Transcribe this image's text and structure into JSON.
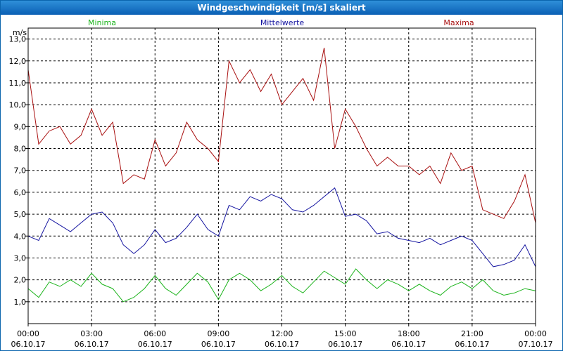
{
  "window": {
    "title": "Windgeschwindigkeit [m/s] skaliert"
  },
  "colors": {
    "min": "#1bb31b",
    "mean": "#1414a0",
    "max": "#a80f0f",
    "grid": "#000000",
    "title_bg": "#1670c6"
  },
  "chart_data": {
    "type": "line",
    "title": "Windgeschwindigkeit [m/s] skaliert",
    "ylabel": "m/s",
    "xlabel": "",
    "ylim": [
      0.0,
      13.5
    ],
    "xlim": [
      0,
      24
    ],
    "y_ticks": [
      1.0,
      2.0,
      3.0,
      4.0,
      5.0,
      6.0,
      7.0,
      8.0,
      9.0,
      10.0,
      11.0,
      12.0,
      13.0
    ],
    "y_tick_labels": [
      "1,0",
      "2,0",
      "3,0",
      "4,0",
      "5,0",
      "6,0",
      "7,0",
      "8,0",
      "9,0",
      "10,0",
      "11,0",
      "12,0",
      "13,0"
    ],
    "x_ticks": [
      0,
      3,
      6,
      9,
      12,
      15,
      18,
      21,
      24
    ],
    "x_tick_times": [
      "00:00",
      "03:00",
      "06:00",
      "09:00",
      "12:00",
      "15:00",
      "18:00",
      "21:00",
      "00:00"
    ],
    "x_tick_dates": [
      "06.10.17",
      "06.10.17",
      "06.10.17",
      "06.10.17",
      "06.10.17",
      "06.10.17",
      "06.10.17",
      "06.10.17",
      "07.10.17"
    ],
    "grid": true,
    "legend": [
      "Minima",
      "Mittelwerte",
      "Maxima"
    ],
    "series": [
      {
        "name": "Minima",
        "color": "#1bb31b",
        "x": [
          0,
          0.5,
          1,
          1.5,
          2,
          2.5,
          3,
          3.5,
          4,
          4.5,
          5,
          5.5,
          6,
          6.5,
          7,
          7.5,
          8,
          8.5,
          9,
          9.5,
          10,
          10.5,
          11,
          11.5,
          12,
          12.5,
          13,
          13.5,
          14,
          14.5,
          15,
          15.5,
          16,
          16.5,
          17,
          17.5,
          18,
          18.5,
          19,
          19.5,
          20,
          20.5,
          21,
          21.5,
          22,
          22.5,
          23,
          23.5,
          24
        ],
        "values": [
          1.6,
          1.2,
          1.9,
          1.7,
          2.0,
          1.7,
          2.3,
          1.8,
          1.6,
          1.0,
          1.2,
          1.6,
          2.2,
          1.6,
          1.3,
          1.8,
          2.3,
          1.9,
          1.1,
          2.0,
          2.3,
          2.0,
          1.5,
          1.8,
          2.2,
          1.7,
          1.4,
          1.9,
          2.4,
          2.1,
          1.8,
          2.5,
          2.0,
          1.6,
          2.0,
          1.8,
          1.5,
          1.8,
          1.5,
          1.3,
          1.7,
          1.9,
          1.6,
          2.0,
          1.5,
          1.3,
          1.4,
          1.6,
          1.5
        ]
      },
      {
        "name": "Mittelwerte",
        "color": "#1414a0",
        "x": [
          0,
          0.5,
          1,
          1.5,
          2,
          2.5,
          3,
          3.5,
          4,
          4.5,
          5,
          5.5,
          6,
          6.5,
          7,
          7.5,
          8,
          8.5,
          9,
          9.5,
          10,
          10.5,
          11,
          11.5,
          12,
          12.5,
          13,
          13.5,
          14,
          14.5,
          15,
          15.5,
          16,
          16.5,
          17,
          17.5,
          18,
          18.5,
          19,
          19.5,
          20,
          20.5,
          21,
          21.5,
          22,
          22.5,
          23,
          23.5,
          24
        ],
        "values": [
          4.0,
          3.8,
          4.8,
          4.5,
          4.2,
          4.6,
          5.0,
          5.1,
          4.6,
          3.6,
          3.2,
          3.6,
          4.3,
          3.7,
          3.9,
          4.4,
          5.0,
          4.3,
          4.0,
          5.4,
          5.2,
          5.8,
          5.6,
          5.9,
          5.7,
          5.2,
          5.1,
          5.4,
          5.8,
          6.2,
          4.9,
          5.0,
          4.7,
          4.1,
          4.2,
          3.9,
          3.8,
          3.7,
          3.9,
          3.6,
          3.8,
          4.0,
          3.8,
          3.2,
          2.6,
          2.7,
          2.9,
          3.6,
          2.6
        ]
      },
      {
        "name": "Maxima",
        "color": "#a80f0f",
        "x": [
          0,
          0.5,
          1,
          1.5,
          2,
          2.5,
          3,
          3.5,
          4,
          4.5,
          5,
          5.5,
          6,
          6.5,
          7,
          7.5,
          8,
          8.5,
          9,
          9.5,
          10,
          10.5,
          11,
          11.5,
          12,
          12.5,
          13,
          13.5,
          14,
          14.5,
          15,
          15.5,
          16,
          16.5,
          17,
          17.5,
          18,
          18.5,
          19,
          19.5,
          20,
          20.5,
          21,
          21.5,
          22,
          22.5,
          23,
          23.5,
          24
        ],
        "values": [
          11.6,
          8.2,
          8.8,
          9.0,
          8.2,
          8.6,
          9.8,
          8.6,
          9.2,
          6.4,
          6.8,
          6.6,
          8.4,
          7.2,
          7.8,
          9.2,
          8.4,
          8.0,
          7.4,
          12.0,
          11.0,
          11.6,
          10.6,
          11.4,
          10.0,
          10.6,
          11.2,
          10.2,
          12.6,
          8.0,
          9.8,
          9.0,
          8.0,
          7.2,
          7.6,
          7.2,
          7.2,
          6.8,
          7.2,
          6.4,
          7.8,
          7.0,
          7.2,
          5.2,
          5.0,
          4.8,
          5.6,
          6.8,
          4.6
        ]
      }
    ]
  }
}
